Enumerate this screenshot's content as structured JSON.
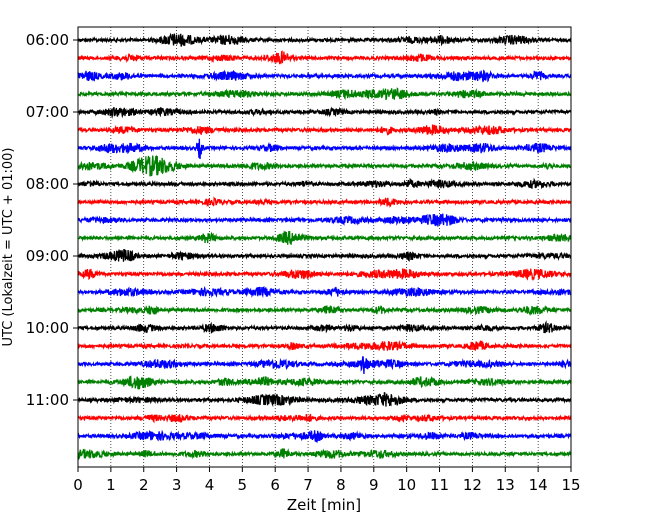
{
  "chart_data": {
    "type": "line",
    "title": "",
    "xlabel": "Zeit  [min]",
    "ylabel": "UTC (Lokalzeit = UTC + 01:00)",
    "xlim": [
      0,
      15
    ],
    "x_ticks": [
      "0",
      "1",
      "2",
      "3",
      "4",
      "5",
      "6",
      "7",
      "8",
      "9",
      "10",
      "11",
      "12",
      "13",
      "14",
      "15"
    ],
    "y_tick_labels": [
      "06:00",
      "07:00",
      "08:00",
      "09:00",
      "10:00",
      "11:00"
    ],
    "trace_start_times": [
      "06:00",
      "06:15",
      "06:30",
      "06:45",
      "07:00",
      "07:15",
      "07:30",
      "07:45",
      "08:00",
      "08:15",
      "08:30",
      "08:45",
      "09:00",
      "09:15",
      "09:30",
      "09:45",
      "10:00",
      "10:15",
      "10:30",
      "10:45",
      "11:00",
      "11:15",
      "11:30",
      "11:45"
    ],
    "trace_colors": [
      "#000000",
      "#ff0000",
      "#0000ff",
      "#008000"
    ],
    "grid": "vertical dotted lines at each minute",
    "events": [
      {
        "trace": "07:30",
        "minute": 3.7,
        "note": "spike"
      },
      {
        "trace": "10:30",
        "minute": 8.7,
        "note": "spike"
      }
    ]
  }
}
